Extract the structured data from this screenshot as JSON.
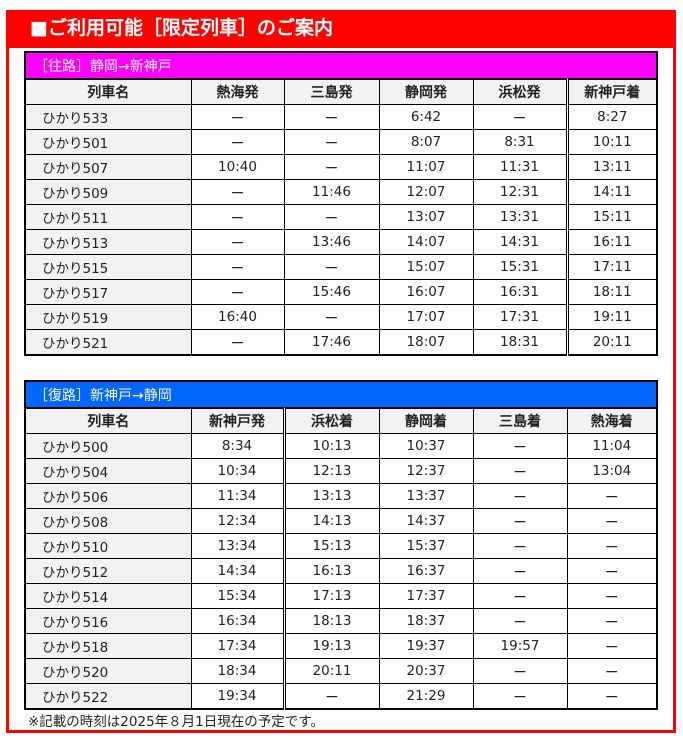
{
  "title": "■ご利用可能［限定列車］のご案内",
  "colors": {
    "banner": "#ff0000",
    "outbound": "#ff00ff",
    "inbound": "#0066ff"
  },
  "outbound": {
    "caption": "［往路］静岡→新神戸",
    "headers": [
      "列車名",
      "熱海発",
      "三島発",
      "静岡発",
      "浜松発",
      "新神戸着"
    ],
    "rows": [
      [
        "ひかり533",
        "ー",
        "ー",
        "6:42",
        "ー",
        "8:27"
      ],
      [
        "ひかり501",
        "ー",
        "ー",
        "8:07",
        "8:31",
        "10:11"
      ],
      [
        "ひかり507",
        "10:40",
        "ー",
        "11:07",
        "11:31",
        "13:11"
      ],
      [
        "ひかり509",
        "ー",
        "11:46",
        "12:07",
        "12:31",
        "14:11"
      ],
      [
        "ひかり511",
        "ー",
        "ー",
        "13:07",
        "13:31",
        "15:11"
      ],
      [
        "ひかり513",
        "ー",
        "13:46",
        "14:07",
        "14:31",
        "16:11"
      ],
      [
        "ひかり515",
        "ー",
        "ー",
        "15:07",
        "15:31",
        "17:11"
      ],
      [
        "ひかり517",
        "ー",
        "15:46",
        "16:07",
        "16:31",
        "18:11"
      ],
      [
        "ひかり519",
        "16:40",
        "ー",
        "17:07",
        "17:31",
        "19:11"
      ],
      [
        "ひかり521",
        "ー",
        "17:46",
        "18:07",
        "18:31",
        "20:11"
      ]
    ]
  },
  "inbound": {
    "caption": "［復路］新神戸→静岡",
    "headers": [
      "列車名",
      "新神戸発",
      "浜松着",
      "静岡着",
      "三島着",
      "熱海着"
    ],
    "rows": [
      [
        "ひかり500",
        "8:34",
        "10:13",
        "10:37",
        "ー",
        "11:04"
      ],
      [
        "ひかり504",
        "10:34",
        "12:13",
        "12:37",
        "ー",
        "13:04"
      ],
      [
        "ひかり506",
        "11:34",
        "13:13",
        "13:37",
        "ー",
        "ー"
      ],
      [
        "ひかり508",
        "12:34",
        "14:13",
        "14:37",
        "ー",
        "ー"
      ],
      [
        "ひかり510",
        "13:34",
        "15:13",
        "15:37",
        "ー",
        "ー"
      ],
      [
        "ひかり512",
        "14:34",
        "16:13",
        "16:37",
        "ー",
        "ー"
      ],
      [
        "ひかり514",
        "15:34",
        "17:13",
        "17:37",
        "ー",
        "ー"
      ],
      [
        "ひかり516",
        "16:34",
        "18:13",
        "18:37",
        "ー",
        "ー"
      ],
      [
        "ひかり518",
        "17:34",
        "19:13",
        "19:37",
        "19:57",
        "ー"
      ],
      [
        "ひかり520",
        "18:34",
        "20:11",
        "20:37",
        "ー",
        "ー"
      ],
      [
        "ひかり522",
        "19:34",
        "ー",
        "21:29",
        "ー",
        "ー"
      ]
    ]
  },
  "note": "※記載の時刻は2025年８月1日現在の予定です。"
}
